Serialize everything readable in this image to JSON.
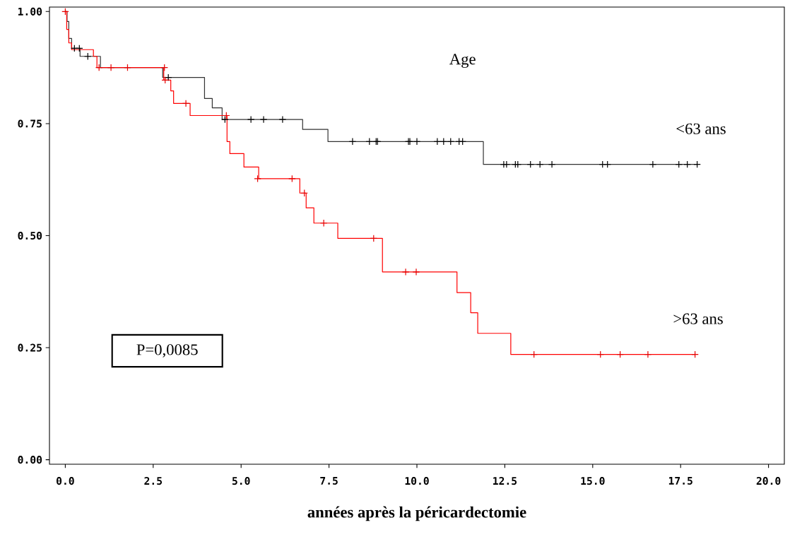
{
  "chart_data": {
    "type": "step",
    "xlabel": "**années après la péricardectomie**",
    "annotations": [
      "Age",
      "P=0,0085"
    ],
    "xlim": [
      -0.45,
      20.45
    ],
    "ylim": [
      -0.01,
      1.01
    ],
    "xticks": [
      {
        "value": 0,
        "label": "0.0"
      },
      {
        "value": 2.5,
        "label": "2.5"
      },
      {
        "value": 5,
        "label": "5.0"
      },
      {
        "value": 7.5,
        "label": "7.5"
      },
      {
        "value": 10,
        "label": "10.0"
      },
      {
        "value": 12.5,
        "label": "12.5"
      },
      {
        "value": 15,
        "label": "15.0"
      },
      {
        "value": 17.5,
        "label": "17.5"
      },
      {
        "value": 20,
        "label": "20.0"
      }
    ],
    "yticks": [
      {
        "value": 0,
        "label": "0.00"
      },
      {
        "value": 0.25,
        "label": "0.25"
      },
      {
        "value": 0.5,
        "label": "0.50"
      },
      {
        "value": 0.75,
        "label": "0.75"
      },
      {
        "value": 1,
        "label": "1.00"
      }
    ],
    "series": [
      {
        "name": "<63 ans",
        "type": "step",
        "color": "#333333",
        "x": [
          0,
          0.05,
          0.1,
          0.18,
          0.42,
          1.0,
          2.77,
          3.96,
          4.18,
          4.46,
          6.75,
          7.47,
          11.89,
          17.99
        ],
        "values": [
          1,
          0.978,
          0.94,
          0.918,
          0.9,
          0.875,
          0.853,
          0.806,
          0.785,
          0.759,
          0.737,
          0.71,
          0.659,
          0.659
        ]
      },
      {
        "name": ">63 ans",
        "type": "step",
        "color": "#ff0000",
        "x": [
          0,
          0.04,
          0.1,
          0.18,
          0.8,
          0.9,
          2.8,
          3.0,
          3.08,
          3.55,
          4.6,
          4.68,
          5.08,
          5.5,
          6.67,
          6.85,
          7.07,
          7.75,
          9.02,
          11.14,
          11.53,
          11.73,
          12.67,
          17.91
        ],
        "values": [
          1,
          0.96,
          0.93,
          0.915,
          0.9,
          0.875,
          0.847,
          0.823,
          0.795,
          0.768,
          0.71,
          0.683,
          0.653,
          0.627,
          0.595,
          0.562,
          0.528,
          0.494,
          0.419,
          0.373,
          0.328,
          0.282,
          0.235,
          0.235
        ]
      },
      {
        "type": "scatter",
        "marker": "cross",
        "color": "#000000",
        "x": [
          0.26,
          0.4,
          0.64,
          2.93,
          4.54,
          5.28,
          5.64,
          6.18,
          8.17,
          8.65,
          8.84,
          8.88,
          9.76,
          9.8,
          10.0,
          10.58,
          10.76,
          10.96,
          11.2,
          11.3,
          12.47,
          12.55,
          12.8,
          12.87,
          13.23,
          13.5,
          13.84,
          15.28,
          15.42,
          16.71,
          17.45,
          17.69,
          17.97
        ],
        "values": [
          0.918,
          0.918,
          0.9,
          0.853,
          0.759,
          0.759,
          0.759,
          0.759,
          0.71,
          0.71,
          0.71,
          0.71,
          0.71,
          0.71,
          0.71,
          0.71,
          0.71,
          0.71,
          0.71,
          0.71,
          0.659,
          0.659,
          0.659,
          0.659,
          0.659,
          0.659,
          0.659,
          0.659,
          0.659,
          0.659,
          0.659,
          0.659,
          0.659
        ]
      },
      {
        "type": "scatter",
        "marker": "cross",
        "color": "#e60000",
        "x": [
          0,
          0.96,
          1.3,
          1.77,
          2.82,
          2.84,
          3.43,
          4.58,
          5.47,
          6.45,
          6.8,
          7.35,
          8.77,
          9.68,
          9.98,
          13.33,
          15.22,
          15.78,
          16.57,
          17.91
        ],
        "values": [
          1,
          0.875,
          0.875,
          0.875,
          0.875,
          0.847,
          0.795,
          0.768,
          0.627,
          0.627,
          0.595,
          0.528,
          0.494,
          0.419,
          0.419,
          0.235,
          0.235,
          0.235,
          0.235,
          0.235
        ]
      }
    ]
  }
}
